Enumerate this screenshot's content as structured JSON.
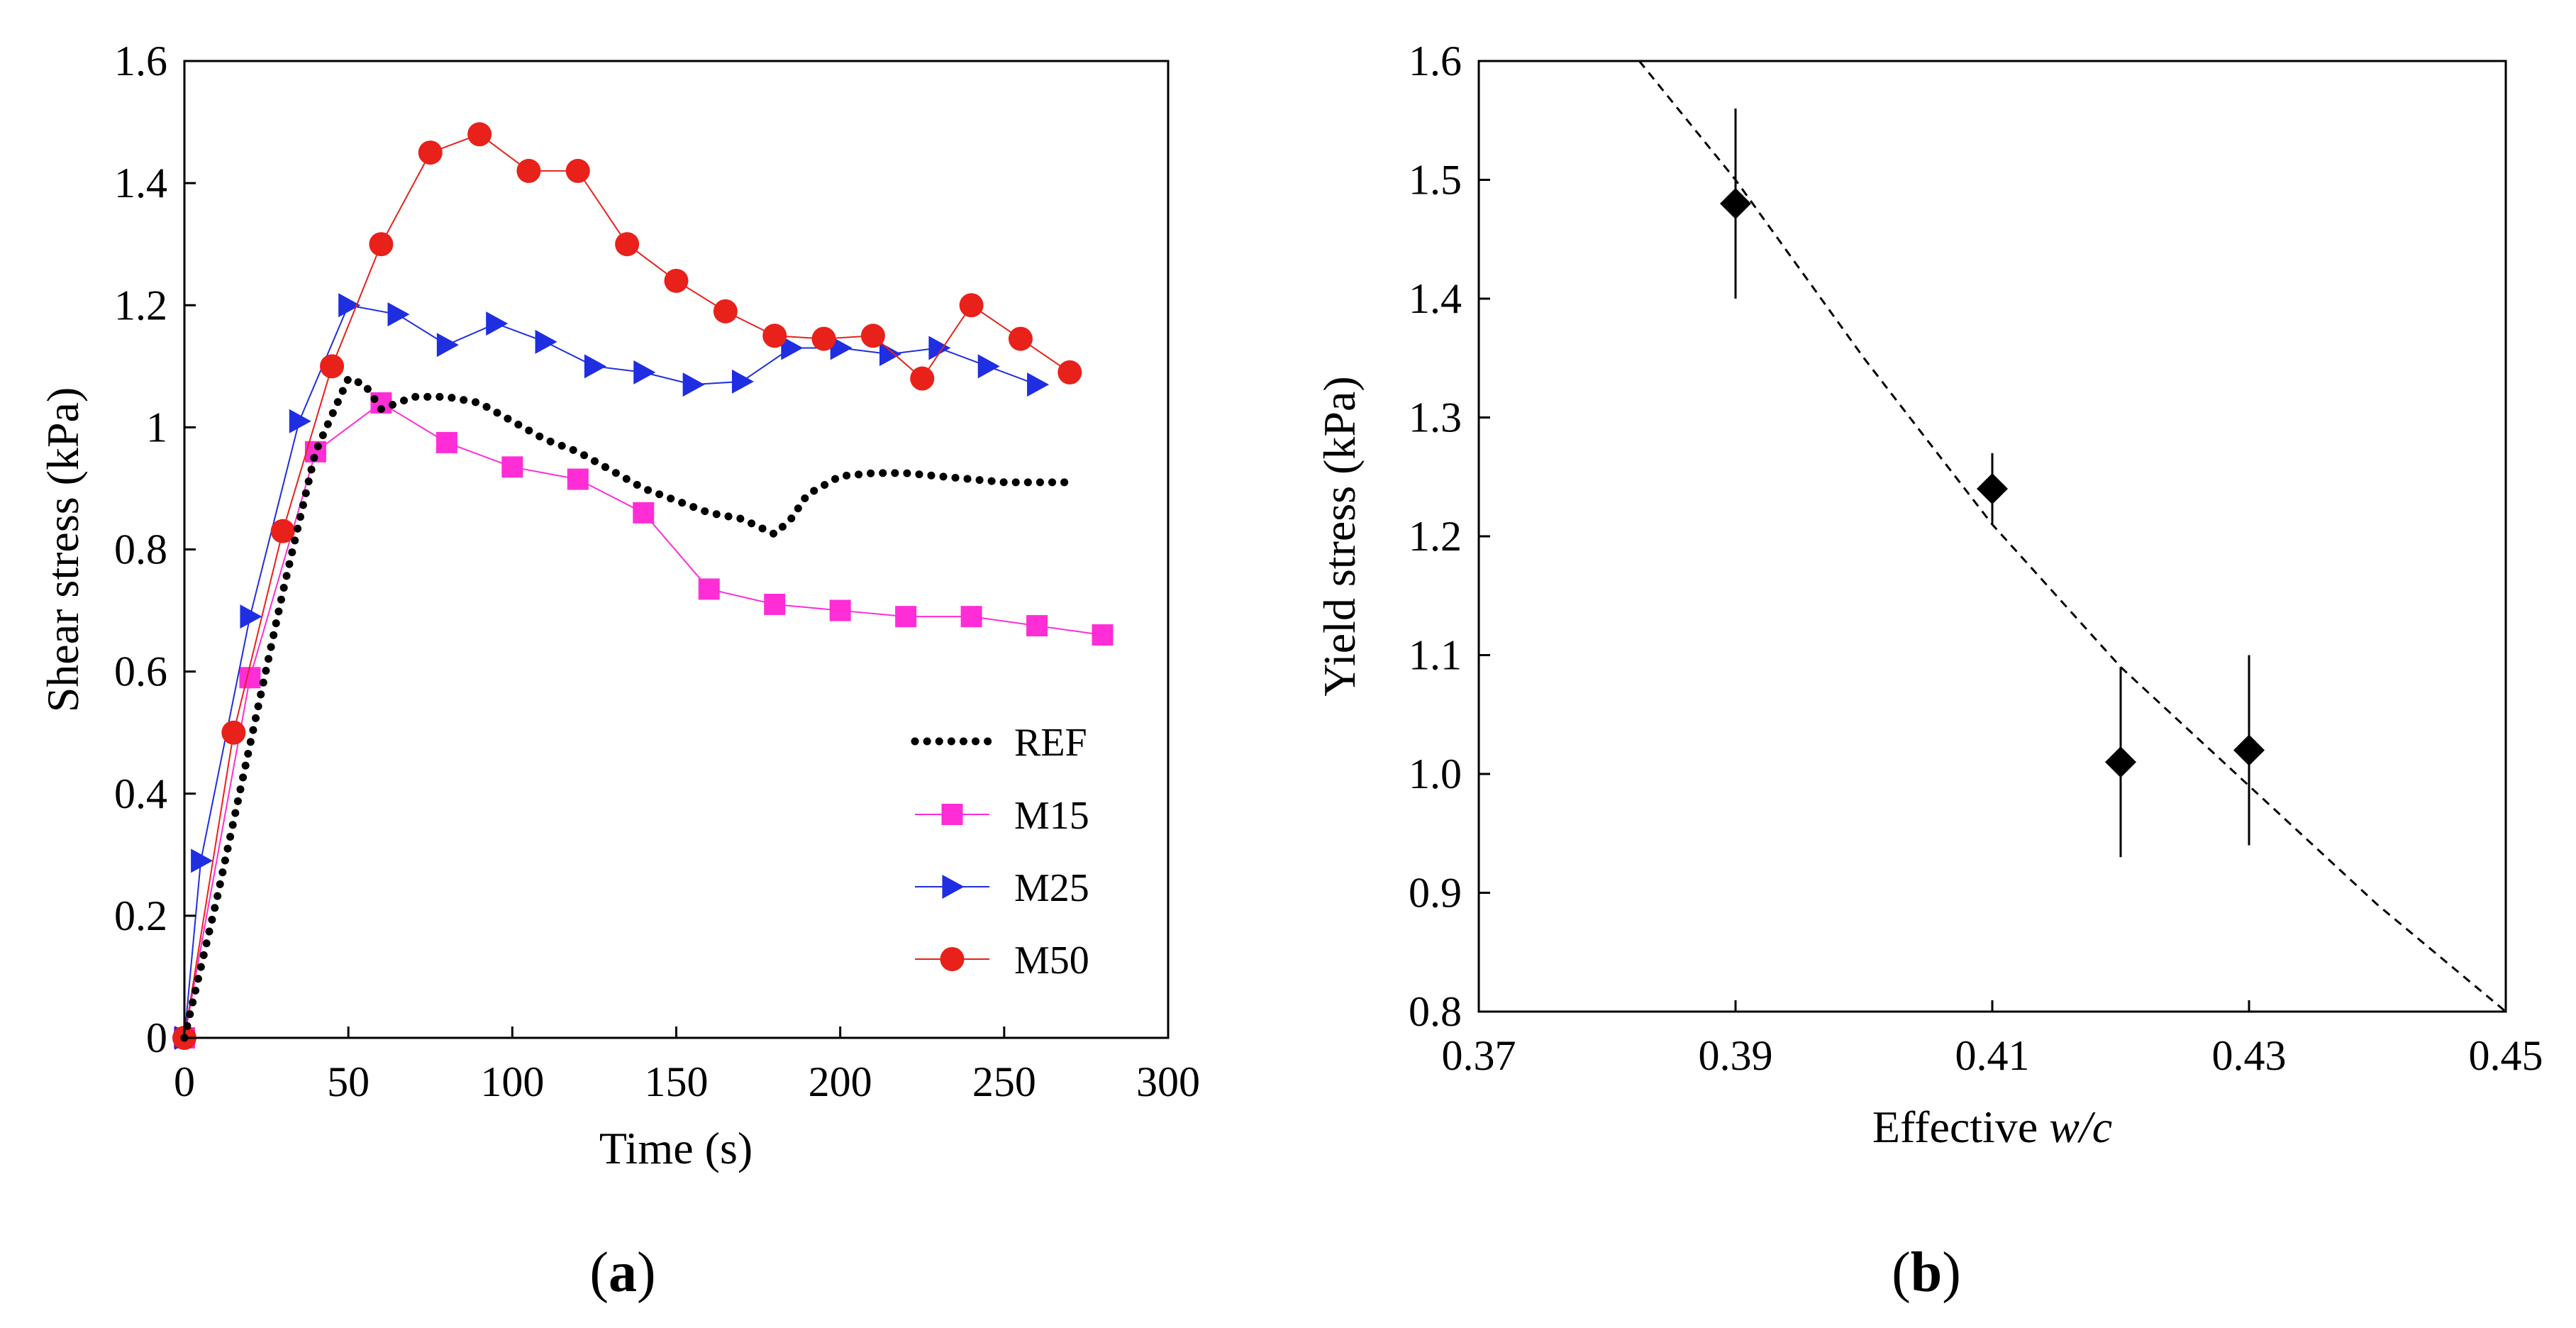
{
  "figure": {
    "panel_a_label": "a",
    "panel_b_label": "b"
  },
  "chart_data": [
    {
      "id": "a",
      "type": "line",
      "title": "",
      "xlabel": "Time (s)",
      "ylabel": "Shear stress (kPa)",
      "xlim": [
        0,
        300
      ],
      "ylim": [
        0,
        1.6
      ],
      "xticks": [
        0,
        50,
        100,
        150,
        200,
        250,
        300
      ],
      "yticks": [
        0,
        0.2,
        0.4,
        0.6,
        0.8,
        1,
        1.2,
        1.4,
        1.6
      ],
      "ytick_labels": [
        "0",
        "0.2",
        "0.4",
        "0.6",
        "0.8",
        "1",
        "1.2",
        "1.4",
        "1.6"
      ],
      "grid": false,
      "legend": "bottom-right",
      "series": [
        {
          "name": "REF",
          "style": "dotted-thick",
          "color": "#000000",
          "x": [
            0,
            10,
            20,
            30,
            40,
            50,
            55,
            60,
            70,
            80,
            90,
            100,
            110,
            120,
            130,
            140,
            150,
            160,
            170,
            180,
            185,
            190,
            200,
            210,
            220,
            230,
            240,
            250,
            260,
            270
          ],
          "y": [
            0,
            0.23,
            0.48,
            0.73,
            0.96,
            1.08,
            1.07,
            1.03,
            1.05,
            1.05,
            1.04,
            1.01,
            0.98,
            0.96,
            0.93,
            0.9,
            0.88,
            0.86,
            0.85,
            0.825,
            0.85,
            0.89,
            0.92,
            0.925,
            0.925,
            0.92,
            0.915,
            0.91,
            0.91,
            0.91
          ]
        },
        {
          "name": "M15",
          "marker": "square",
          "color": "#ff2dd6",
          "x": [
            0,
            20,
            40,
            60,
            80,
            100,
            120,
            140,
            160,
            180,
            200,
            220,
            240,
            260,
            280
          ],
          "y": [
            0,
            0.59,
            0.96,
            1.04,
            0.975,
            0.935,
            0.915,
            0.86,
            0.735,
            0.71,
            0.7,
            0.69,
            0.69,
            0.675,
            0.66
          ]
        },
        {
          "name": "M25",
          "marker": "triangle-right",
          "color": "#1f2ee0",
          "x": [
            0,
            5,
            20,
            35,
            50,
            65,
            80,
            95,
            110,
            125,
            140,
            155,
            170,
            185,
            200,
            215,
            230,
            245,
            260
          ],
          "y": [
            0,
            0.29,
            0.69,
            1.01,
            1.2,
            1.185,
            1.135,
            1.17,
            1.14,
            1.1,
            1.09,
            1.07,
            1.075,
            1.13,
            1.13,
            1.12,
            1.13,
            1.1,
            1.07
          ]
        },
        {
          "name": "M50",
          "marker": "circle",
          "color": "#e8211a",
          "x": [
            0,
            15,
            30,
            45,
            60,
            75,
            90,
            105,
            120,
            135,
            150,
            165,
            180,
            195,
            210,
            225,
            240,
            255,
            270
          ],
          "y": [
            0,
            0.5,
            0.83,
            1.1,
            1.3,
            1.45,
            1.48,
            1.42,
            1.42,
            1.3,
            1.24,
            1.19,
            1.15,
            1.145,
            1.15,
            1.08,
            1.2,
            1.145,
            1.09
          ]
        }
      ]
    },
    {
      "id": "b",
      "type": "scatter",
      "title": "",
      "xlabel_prefix": "Effective ",
      "xlabel_italic": "w/c",
      "ylabel": "Yield stress (kPa)",
      "xlim": [
        0.37,
        0.45
      ],
      "ylim": [
        0.8,
        1.6
      ],
      "xticks": [
        0.37,
        0.39,
        0.41,
        0.43,
        0.45
      ],
      "xtick_labels": [
        "0.37",
        "0.39",
        "0.41",
        "0.43",
        "0.45"
      ],
      "yticks": [
        0.8,
        0.9,
        1.0,
        1.1,
        1.2,
        1.3,
        1.4,
        1.5,
        1.6
      ],
      "ytick_labels": [
        "0.8",
        "0.9",
        "1.0",
        "1.1",
        "1.2",
        "1.3",
        "1.4",
        "1.5",
        "1.6"
      ],
      "grid": false,
      "points": [
        {
          "x": 0.39,
          "y": 1.48,
          "ymin": 1.4,
          "ymax": 1.56
        },
        {
          "x": 0.41,
          "y": 1.24,
          "ymin": 1.21,
          "ymax": 1.27
        },
        {
          "x": 0.42,
          "y": 1.01,
          "ymin": 0.93,
          "ymax": 1.09
        },
        {
          "x": 0.43,
          "y": 1.02,
          "ymin": 0.94,
          "ymax": 1.1
        }
      ],
      "fit_curve": {
        "style": "dashed",
        "x": [
          0.3825,
          0.39,
          0.4,
          0.41,
          0.42,
          0.43,
          0.44,
          0.45
        ],
        "y": [
          1.6,
          1.5,
          1.35,
          1.21,
          1.09,
          0.99,
          0.89,
          0.8
        ]
      }
    }
  ]
}
